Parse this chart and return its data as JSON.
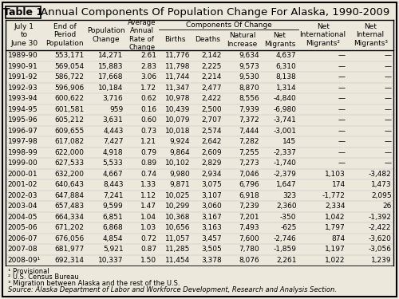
{
  "title": "Annual Components Of Population Change For Alaska, 1990-2009",
  "table_label": "Table 1",
  "col_group_label": "Components Of Change",
  "rows": [
    [
      "1989-90",
      "553,171",
      "14,271",
      "2.61",
      "11,776",
      "2,142",
      "9,634",
      "4,637",
      "—",
      "—"
    ],
    [
      "1990-91",
      "569,054",
      "15,883",
      "2.83",
      "11,798",
      "2,225",
      "9,573",
      "6,310",
      "—",
      "—"
    ],
    [
      "1991-92",
      "586,722",
      "17,668",
      "3.06",
      "11,744",
      "2,214",
      "9,530",
      "8,138",
      "—",
      "—"
    ],
    [
      "1992-93",
      "596,906",
      "10,184",
      "1.72",
      "11,347",
      "2,477",
      "8,870",
      "1,314",
      "—",
      "—"
    ],
    [
      "1993-94",
      "600,622",
      "3,716",
      "0.62",
      "10,978",
      "2,422",
      "8,556",
      "-4,840",
      "—",
      "—"
    ],
    [
      "1994-95",
      "601,581",
      "959",
      "0.16",
      "10,439",
      "2,500",
      "7,939",
      "-6,980",
      "—",
      "—"
    ],
    [
      "1995-96",
      "605,212",
      "3,631",
      "0.60",
      "10,079",
      "2,707",
      "7,372",
      "-3,741",
      "—",
      "—"
    ],
    [
      "1996-97",
      "609,655",
      "4,443",
      "0.73",
      "10,018",
      "2,574",
      "7,444",
      "-3,001",
      "—",
      "—"
    ],
    [
      "1997-98",
      "617,082",
      "7,427",
      "1.21",
      "9,924",
      "2,642",
      "7,282",
      "145",
      "—",
      "—"
    ],
    [
      "1998-99",
      "622,000",
      "4,918",
      "0.79",
      "9,864",
      "2,609",
      "7,255",
      "-2,337",
      "—",
      "—"
    ],
    [
      "1999-00",
      "627,533",
      "5,533",
      "0.89",
      "10,102",
      "2,829",
      "7,273",
      "-1,740",
      "—",
      "—"
    ],
    [
      "2000-01",
      "632,200",
      "4,667",
      "0.74",
      "9,980",
      "2,934",
      "7,046",
      "-2,379",
      "1,103",
      "-3,482"
    ],
    [
      "2001-02",
      "640,643",
      "8,443",
      "1.33",
      "9,871",
      "3,075",
      "6,796",
      "1,647",
      "174",
      "1,473"
    ],
    [
      "2002-03",
      "647,884",
      "7,241",
      "1.12",
      "10,025",
      "3,107",
      "6,918",
      "323",
      "-1,772",
      "2,095"
    ],
    [
      "2003-04",
      "657,483",
      "9,599",
      "1.47",
      "10,299",
      "3,060",
      "7,239",
      "2,360",
      "2,334",
      "26"
    ],
    [
      "2004-05",
      "664,334",
      "6,851",
      "1.04",
      "10,368",
      "3,167",
      "7,201",
      "-350",
      "1,042",
      "-1,392"
    ],
    [
      "2005-06",
      "671,202",
      "6,868",
      "1.03",
      "10,656",
      "3,163",
      "7,493",
      "-625",
      "1,797",
      "-2,422"
    ],
    [
      "2006-07",
      "676,056",
      "4,854",
      "0.72",
      "11,057",
      "3,457",
      "7,600",
      "-2,746",
      "874",
      "-3,620"
    ],
    [
      "2007-08",
      "681,977",
      "5,921",
      "0.87",
      "11,285",
      "3,505",
      "7,780",
      "-1,859",
      "1,197",
      "-3,056"
    ],
    [
      "2008-09¹",
      "692,314",
      "10,337",
      "1.50",
      "11,454",
      "3,378",
      "8,076",
      "2,261",
      "1,022",
      "1,239"
    ]
  ],
  "footnotes": [
    "¹ Provisional",
    "² U.S. Census Bureau",
    "³ Migration between Alaska and the rest of the U.S.",
    "Source: Alaska Department of Labor and Workforce Development, Research and Analysis Section."
  ],
  "bg_color": "#ede8dc",
  "border_color": "#000000",
  "text_color": "#000000",
  "data_fontsize": 6.5,
  "header_fontsize": 6.5,
  "title_fontsize": 9.5,
  "label_fontsize": 9.0
}
